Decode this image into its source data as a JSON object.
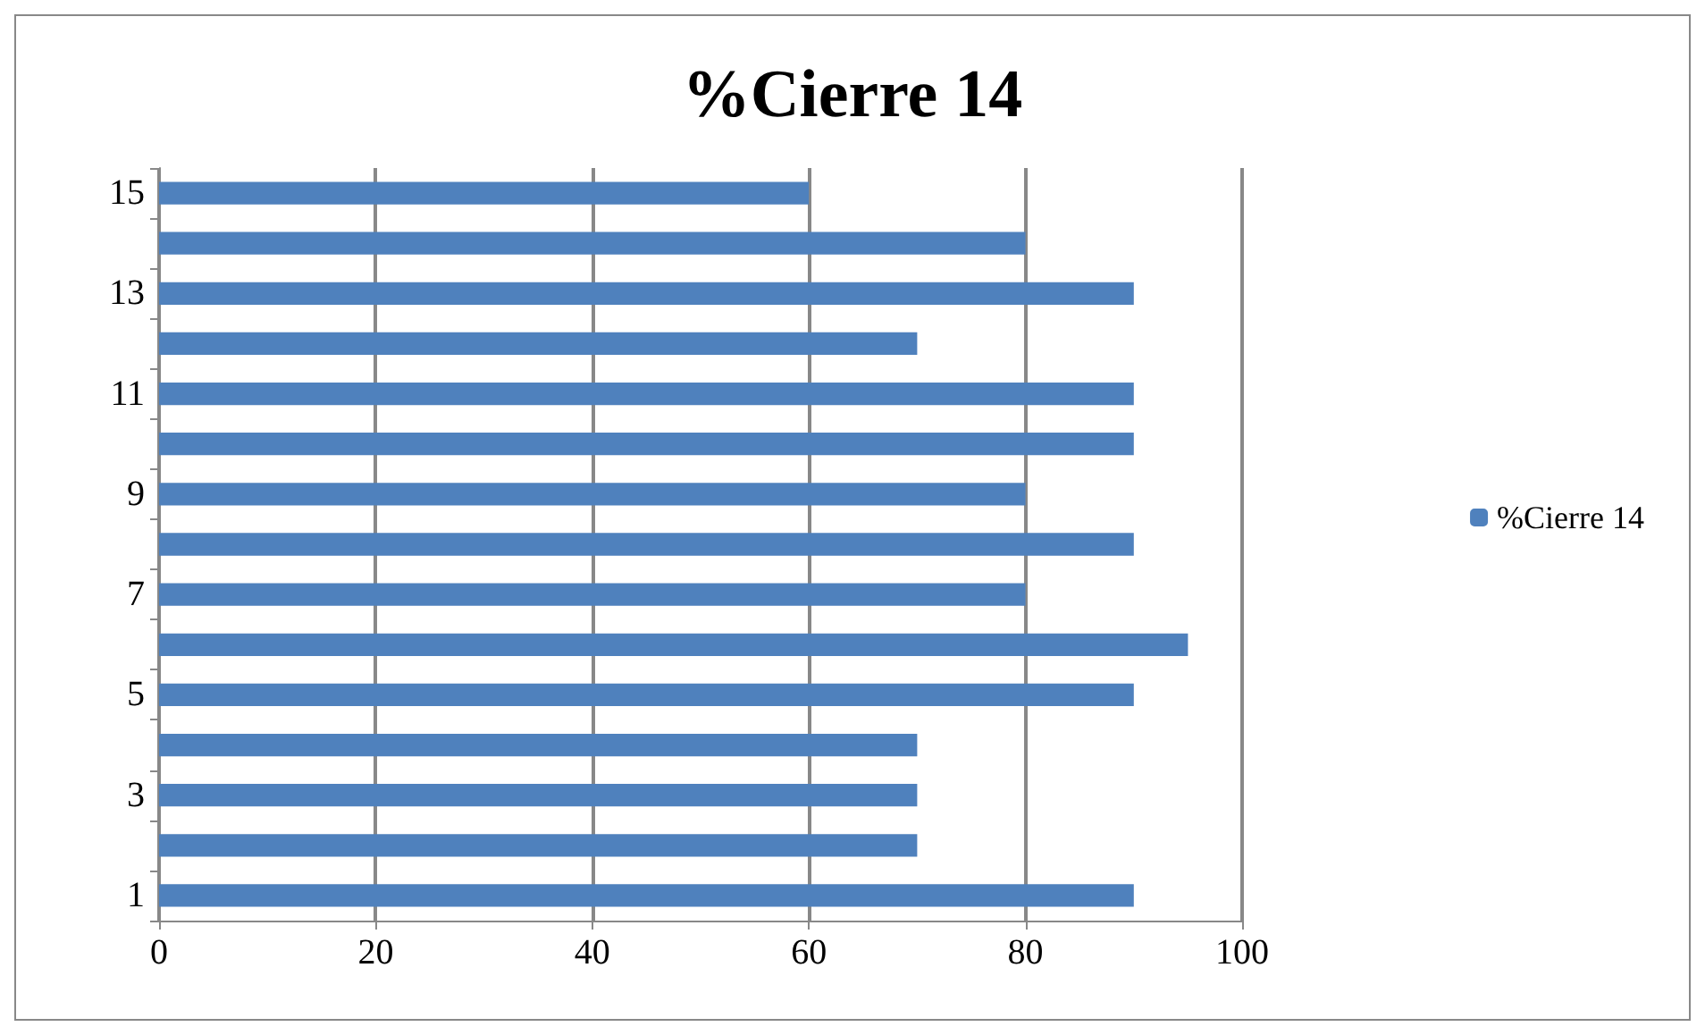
{
  "chart_data": {
    "type": "bar",
    "orientation": "horizontal",
    "title": "%Cierre 14",
    "categories": [
      "15",
      null,
      "13",
      null,
      "11",
      null,
      "9",
      null,
      "7",
      null,
      "5",
      null,
      "3",
      null,
      "1"
    ],
    "series": [
      {
        "name": "%Cierre 14",
        "color": "#4f81bd",
        "values": [
          60,
          80,
          90,
          70,
          90,
          90,
          80,
          90,
          80,
          95,
          90,
          70,
          70,
          70,
          90
        ]
      }
    ],
    "xlim": [
      0,
      100
    ],
    "xticks": [
      0,
      20,
      40,
      60,
      80,
      100
    ],
    "grid": "x",
    "legend": "right"
  }
}
